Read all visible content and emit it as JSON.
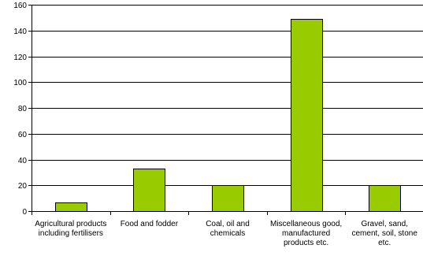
{
  "chart_data": {
    "type": "bar",
    "categories": [
      "Agricultural products including fertilisers",
      "Food and fodder",
      "Coal, oil and chemicals",
      "Miscellaneous good, manufactured products etc.",
      "Gravel, sand, cement, soil, stone etc."
    ],
    "values": [
      7,
      33,
      20,
      149,
      20
    ],
    "ylim": [
      0,
      160
    ],
    "yticks": [
      0,
      20,
      40,
      60,
      80,
      100,
      120,
      140,
      160
    ],
    "ytick_labels": [
      "0",
      "20",
      "40",
      "60",
      "80",
      "100",
      "120",
      "140",
      "160"
    ],
    "title": "",
    "xlabel": "",
    "ylabel": "",
    "grid": "horizontal",
    "legend": "none",
    "colors": {
      "bar_fill": "#99cc00",
      "bar_stroke": "#000000",
      "grid": "#000000",
      "axis": "#000000"
    }
  }
}
